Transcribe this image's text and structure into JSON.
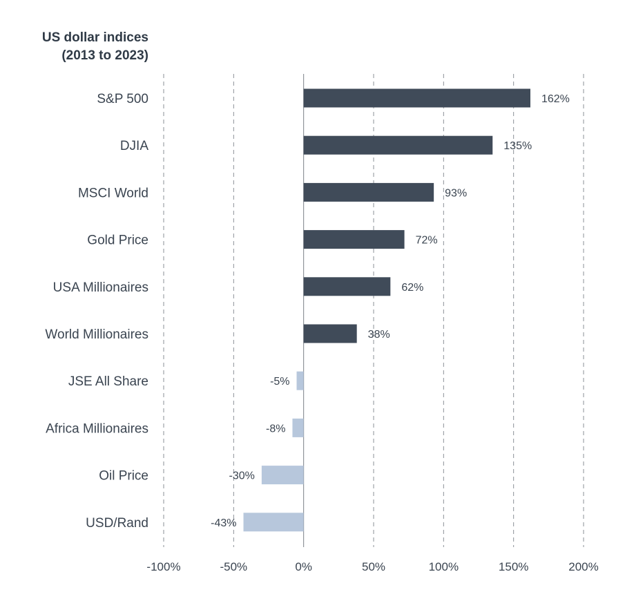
{
  "chart_data": {
    "type": "bar",
    "orientation": "horizontal",
    "title_lines": [
      "US dollar indices",
      "(2013 to 2023)"
    ],
    "categories": [
      "S&P 500",
      "DJIA",
      "MSCI World",
      "Gold Price",
      "USA Millionaires",
      "World Millionaires",
      "JSE All Share",
      "Africa Millionaires",
      "Oil Price",
      "USD/Rand"
    ],
    "values": [
      162,
      135,
      93,
      72,
      62,
      38,
      -5,
      -8,
      -30,
      -43
    ],
    "value_labels": [
      "162%",
      "135%",
      "93%",
      "72%",
      "62%",
      "38%",
      "-5%",
      "-8%",
      "-30%",
      "-43%"
    ],
    "xlim": [
      -100,
      200
    ],
    "xticks": [
      -100,
      -50,
      0,
      50,
      100,
      150,
      200
    ],
    "xtick_labels": [
      "-100%",
      "-50%",
      "0%",
      "50%",
      "100%",
      "150%",
      "200%"
    ],
    "grid": true,
    "colors": {
      "positive": "#404b59",
      "negative": "#b7c7dc",
      "text": "#3a4450"
    }
  }
}
